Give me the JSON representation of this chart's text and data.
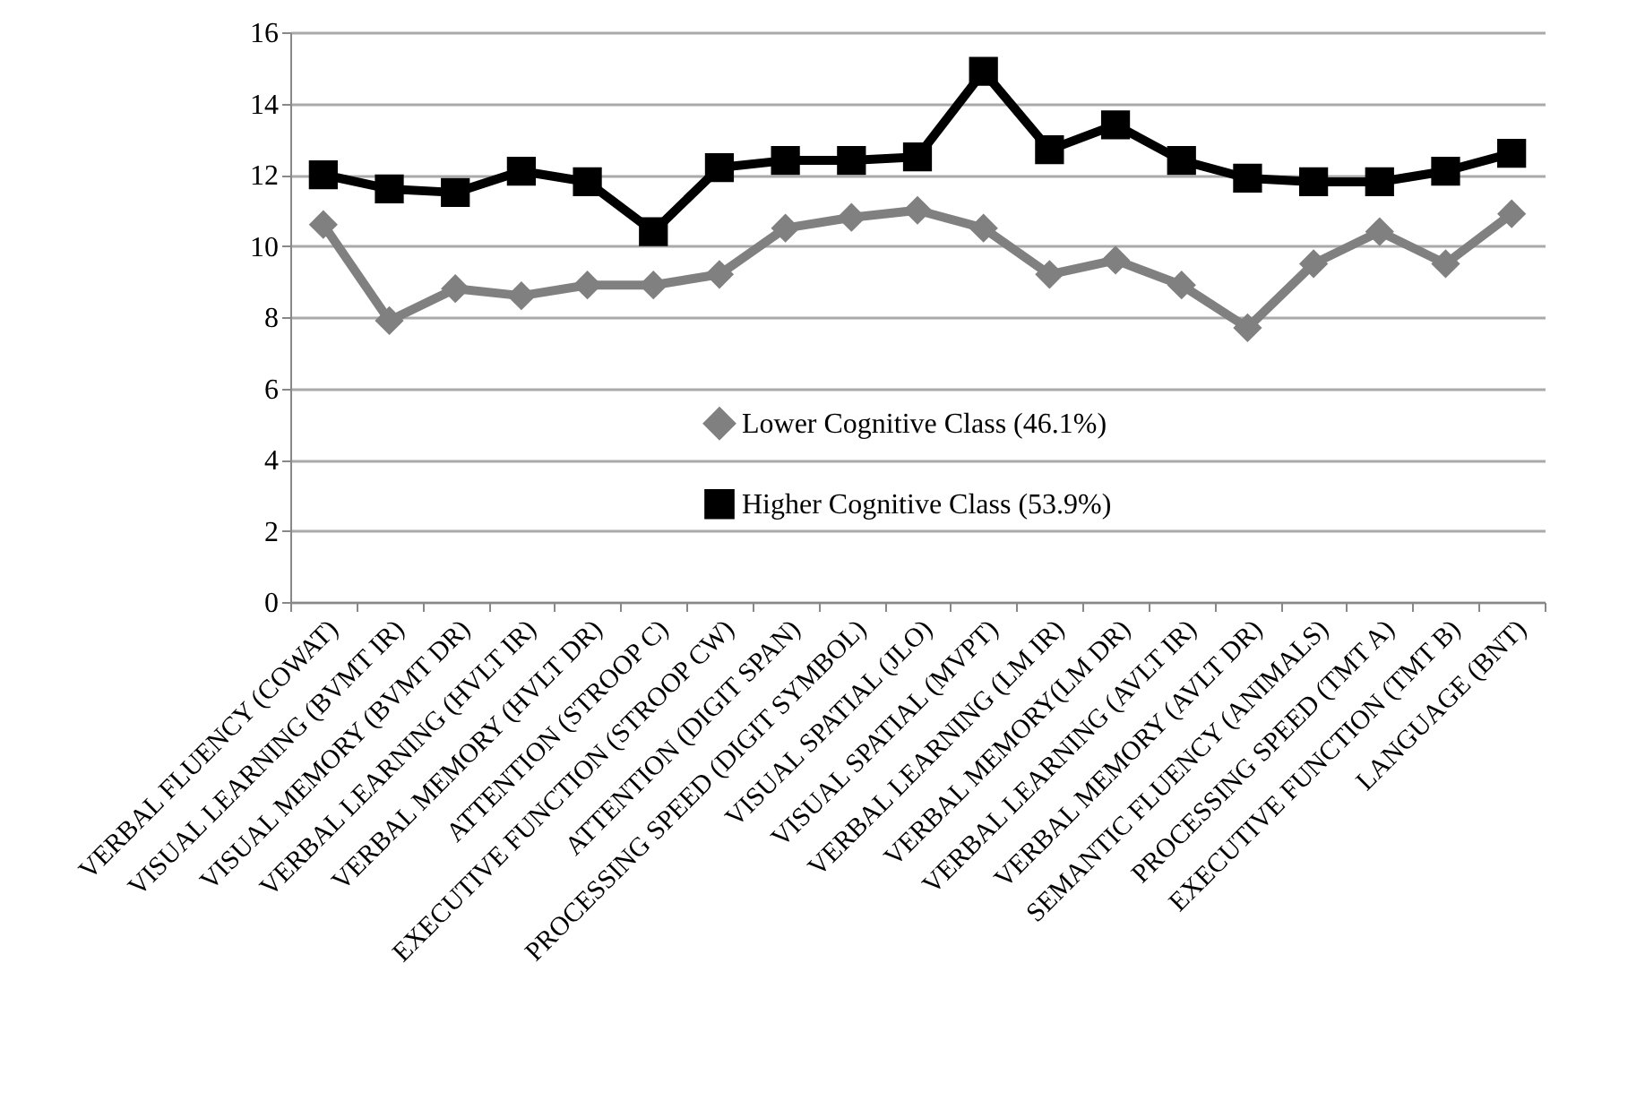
{
  "chart_data": {
    "type": "line",
    "categories": [
      "VERBAL FLUENCY (COWAT)",
      "VISUAL LEARNING (BVMT IR)",
      "VISUAL MEMORY (BVMT DR)",
      "VERBAL LEARNING (HVLT IR)",
      "VERBAL MEMORY (HVLT DR)",
      "ATTENTION (STROOP C)",
      "EXECUTIVE FUNCTION (STROOP CW)",
      "ATTENTION (DIGIT SPAN)",
      "PROCESSING SPEED (DIGIT SYMBOL)",
      "VISUAL SPATIAL (JLO)",
      "VISUAL SPATIAL (MVPT)",
      "VERBAL LEARNING (LM IR)",
      "VERBAL MEMORY(LM DR)",
      "VERBAL LEARNING (AVLT IR)",
      "VERBAL MEMORY (AVLT DR)",
      "SEMANTIC FLUENCY (ANIMALS)",
      "PROCESSING SPEED (TMT A)",
      "EXECUTIVE FUNCTION (TMT B)",
      "LANGUAGE (BNT)"
    ],
    "series": [
      {
        "name": "Lower Cognitive Class (46.1%)",
        "color": "#808080",
        "marker": "diamond",
        "values": [
          10.6,
          7.9,
          8.8,
          8.6,
          8.9,
          8.9,
          9.2,
          10.5,
          10.8,
          11.0,
          10.5,
          9.2,
          9.6,
          8.9,
          7.7,
          9.5,
          10.4,
          9.5,
          10.9
        ]
      },
      {
        "name": "Higher Cognitive Class (53.9%)",
        "color": "#000000",
        "marker": "square",
        "values": [
          12.0,
          11.6,
          11.5,
          12.1,
          11.8,
          10.4,
          12.2,
          12.4,
          12.4,
          12.5,
          14.9,
          12.7,
          13.4,
          12.4,
          11.9,
          11.8,
          11.8,
          12.1,
          12.6
        ]
      }
    ],
    "ylim": [
      0,
      16
    ],
    "yticks": [
      0,
      2,
      4,
      6,
      8,
      10,
      12,
      14,
      16
    ],
    "grid": "y",
    "legend": "bottom"
  }
}
